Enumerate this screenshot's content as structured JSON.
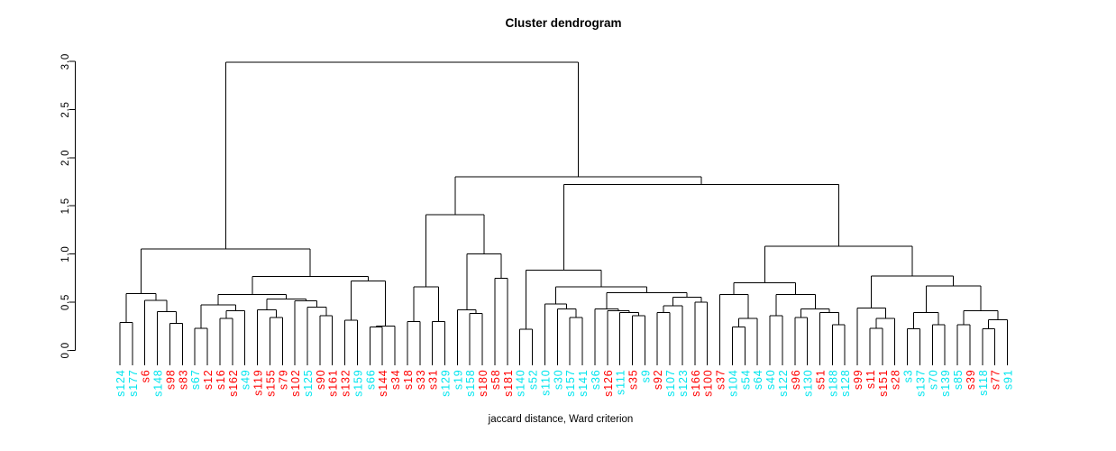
{
  "chart_data": {
    "type": "dendrogram",
    "title": "Cluster dendrogram",
    "xlabel": "jaccard distance, Ward criterion",
    "ylim": [
      0.0,
      3.0
    ],
    "yticks": [
      "0.0",
      "0.5",
      "1.0",
      "1.5",
      "2.0",
      "2.5",
      "3.0"
    ],
    "grid": false,
    "legend": "none",
    "colors": {
      "line": "#000000",
      "red": "#FF0000",
      "cyan": "#00E5EE",
      "axis_text": "#000000"
    },
    "leaves": [
      {
        "label": "s124",
        "color": "cyan"
      },
      {
        "label": "s177",
        "color": "cyan"
      },
      {
        "label": "s6",
        "color": "red"
      },
      {
        "label": "s148",
        "color": "cyan"
      },
      {
        "label": "s98",
        "color": "red"
      },
      {
        "label": "s83",
        "color": "red"
      },
      {
        "label": "s67",
        "color": "cyan"
      },
      {
        "label": "s12",
        "color": "red"
      },
      {
        "label": "s16",
        "color": "red"
      },
      {
        "label": "s162",
        "color": "red"
      },
      {
        "label": "s49",
        "color": "cyan"
      },
      {
        "label": "s119",
        "color": "red"
      },
      {
        "label": "s155",
        "color": "red"
      },
      {
        "label": "s79",
        "color": "red"
      },
      {
        "label": "s102",
        "color": "red"
      },
      {
        "label": "s125",
        "color": "cyan"
      },
      {
        "label": "s90",
        "color": "red"
      },
      {
        "label": "s161",
        "color": "red"
      },
      {
        "label": "s132",
        "color": "red"
      },
      {
        "label": "s159",
        "color": "cyan"
      },
      {
        "label": "s66",
        "color": "cyan"
      },
      {
        "label": "s144",
        "color": "red"
      },
      {
        "label": "s34",
        "color": "red"
      },
      {
        "label": "s18",
        "color": "red"
      },
      {
        "label": "s33",
        "color": "red"
      },
      {
        "label": "s31",
        "color": "red"
      },
      {
        "label": "s129",
        "color": "cyan"
      },
      {
        "label": "s19",
        "color": "cyan"
      },
      {
        "label": "s158",
        "color": "cyan"
      },
      {
        "label": "s180",
        "color": "red"
      },
      {
        "label": "s58",
        "color": "red"
      },
      {
        "label": "s181",
        "color": "red"
      },
      {
        "label": "s140",
        "color": "cyan"
      },
      {
        "label": "s52",
        "color": "cyan"
      },
      {
        "label": "s110",
        "color": "cyan"
      },
      {
        "label": "s30",
        "color": "cyan"
      },
      {
        "label": "s157",
        "color": "cyan"
      },
      {
        "label": "s141",
        "color": "cyan"
      },
      {
        "label": "s36",
        "color": "cyan"
      },
      {
        "label": "s126",
        "color": "red"
      },
      {
        "label": "s111",
        "color": "cyan"
      },
      {
        "label": "s35",
        "color": "red"
      },
      {
        "label": "s9",
        "color": "cyan"
      },
      {
        "label": "s92",
        "color": "red"
      },
      {
        "label": "s107",
        "color": "cyan"
      },
      {
        "label": "s123",
        "color": "cyan"
      },
      {
        "label": "s166",
        "color": "red"
      },
      {
        "label": "s100",
        "color": "red"
      },
      {
        "label": "s37",
        "color": "red"
      },
      {
        "label": "s104",
        "color": "cyan"
      },
      {
        "label": "s54",
        "color": "cyan"
      },
      {
        "label": "s64",
        "color": "cyan"
      },
      {
        "label": "s40",
        "color": "cyan"
      },
      {
        "label": "s122",
        "color": "cyan"
      },
      {
        "label": "s96",
        "color": "red"
      },
      {
        "label": "s130",
        "color": "cyan"
      },
      {
        "label": "s51",
        "color": "red"
      },
      {
        "label": "s188",
        "color": "cyan"
      },
      {
        "label": "s128",
        "color": "cyan"
      },
      {
        "label": "s99",
        "color": "red"
      },
      {
        "label": "s11",
        "color": "red"
      },
      {
        "label": "s151",
        "color": "red"
      },
      {
        "label": "s28",
        "color": "red"
      },
      {
        "label": "s3",
        "color": "cyan"
      },
      {
        "label": "s137",
        "color": "cyan"
      },
      {
        "label": "s70",
        "color": "cyan"
      },
      {
        "label": "s139",
        "color": "cyan"
      },
      {
        "label": "s85",
        "color": "cyan"
      },
      {
        "label": "s39",
        "color": "red"
      },
      {
        "label": "s118",
        "color": "cyan"
      },
      {
        "label": "s77",
        "color": "red"
      },
      {
        "label": "s91",
        "color": "cyan"
      }
    ],
    "tree": {
      "h": 2.99,
      "c": [
        {
          "h": 1.05,
          "c": [
            {
              "h": 0.59,
              "c": [
                {
                  "h": 0.29,
                  "c": [
                    "s124",
                    "s177"
                  ]
                },
                {
                  "h": 0.52,
                  "c": [
                    "s6",
                    {
                      "h": 0.4,
                      "c": [
                        "s148",
                        {
                          "h": 0.28,
                          "c": [
                            "s98",
                            "s83"
                          ]
                        }
                      ]
                    }
                  ]
                }
              ]
            },
            {
              "h": 0.765,
              "c": [
                {
                  "h": 0.58,
                  "c": [
                    {
                      "h": 0.47,
                      "c": [
                        {
                          "h": 0.23,
                          "c": [
                            "s67",
                            "s12"
                          ]
                        },
                        {
                          "h": 0.41,
                          "c": [
                            {
                              "h": 0.33,
                              "c": [
                                "s16",
                                "s162"
                              ]
                            },
                            "s49"
                          ]
                        }
                      ]
                    },
                    {
                      "h": 0.53,
                      "c": [
                        {
                          "h": 0.42,
                          "c": [
                            "s119",
                            {
                              "h": 0.34,
                              "c": [
                                "s155",
                                "s79"
                              ]
                            }
                          ]
                        },
                        {
                          "h": 0.515,
                          "c": [
                            "s102",
                            {
                              "h": 0.45,
                              "c": [
                                "s125",
                                {
                                  "h": 0.36,
                                  "c": [
                                    "s90",
                                    "s161"
                                  ]
                                }
                              ]
                            }
                          ]
                        }
                      ]
                    }
                  ]
                },
                {
                  "h": 0.72,
                  "c": [
                    {
                      "h": 0.31,
                      "c": [
                        "s132",
                        "s159"
                      ]
                    },
                    {
                      "h": 0.25,
                      "c": [
                        {
                          "h": 0.24,
                          "c": [
                            "s66",
                            "s144"
                          ]
                        },
                        "s34"
                      ]
                    }
                  ]
                }
              ]
            }
          ]
        },
        {
          "h": 1.8,
          "c": [
            {
              "h": 1.41,
              "c": [
                {
                  "h": 0.66,
                  "c": [
                    {
                      "h": 0.3,
                      "c": [
                        "s18",
                        "s33"
                      ]
                    },
                    {
                      "h": 0.3,
                      "c": [
                        "s31",
                        "s129"
                      ]
                    }
                  ]
                },
                {
                  "h": 1.0,
                  "c": [
                    {
                      "h": 0.42,
                      "c": [
                        "s19",
                        {
                          "h": 0.38,
                          "c": [
                            "s158",
                            "s180"
                          ]
                        }
                      ]
                    },
                    {
                      "h": 0.75,
                      "c": [
                        "s58",
                        "s181"
                      ]
                    }
                  ]
                }
              ]
            },
            {
              "h": 1.72,
              "c": [
                {
                  "h": 0.83,
                  "c": [
                    {
                      "h": 0.22,
                      "c": [
                        "s140",
                        "s52"
                      ]
                    },
                    {
                      "h": 0.66,
                      "c": [
                        {
                          "h": 0.48,
                          "c": [
                            "s110",
                            {
                              "h": 0.43,
                              "c": [
                                "s30",
                                {
                                  "h": 0.34,
                                  "c": [
                                    "s157",
                                    "s141"
                                  ]
                                }
                              ]
                            }
                          ]
                        },
                        {
                          "h": 0.6,
                          "c": [
                            {
                              "h": 0.43,
                              "c": [
                                "s36",
                                {
                                  "h": 0.41,
                                  "c": [
                                    "s126",
                                    {
                                      "h": 0.39,
                                      "c": [
                                        "s111",
                                        {
                                          "h": 0.36,
                                          "c": [
                                            "s35",
                                            "s9"
                                          ]
                                        }
                                      ]
                                    }
                                  ]
                                }
                              ]
                            },
                            {
                              "h": 0.55,
                              "c": [
                                {
                                  "h": 0.46,
                                  "c": [
                                    {
                                      "h": 0.39,
                                      "c": [
                                        "s92",
                                        "s107"
                                      ]
                                    },
                                    "s123"
                                  ]
                                },
                                {
                                  "h": 0.5,
                                  "c": [
                                    "s166",
                                    "s100"
                                  ]
                                }
                              ]
                            }
                          ]
                        }
                      ]
                    }
                  ]
                },
                {
                  "h": 1.08,
                  "c": [
                    {
                      "h": 0.7,
                      "c": [
                        {
                          "h": 0.58,
                          "c": [
                            "s37",
                            {
                              "h": 0.33,
                              "c": [
                                {
                                  "h": 0.24,
                                  "c": [
                                    "s104",
                                    "s54"
                                  ]
                                },
                                "s64"
                              ]
                            }
                          ]
                        },
                        {
                          "h": 0.58,
                          "c": [
                            {
                              "h": 0.36,
                              "c": [
                                "s40",
                                "s122"
                              ]
                            },
                            {
                              "h": 0.43,
                              "c": [
                                {
                                  "h": 0.34,
                                  "c": [
                                    "s96",
                                    "s130"
                                  ]
                                },
                                {
                                  "h": 0.39,
                                  "c": [
                                    "s51",
                                    {
                                      "h": 0.265,
                                      "c": [
                                        "s188",
                                        "s128"
                                      ]
                                    }
                                  ]
                                }
                              ]
                            }
                          ]
                        }
                      ]
                    },
                    {
                      "h": 0.77,
                      "c": [
                        {
                          "h": 0.44,
                          "c": [
                            "s99",
                            {
                              "h": 0.33,
                              "c": [
                                {
                                  "h": 0.23,
                                  "c": [
                                    "s11",
                                    "s151"
                                  ]
                                },
                                "s28"
                              ]
                            }
                          ]
                        },
                        {
                          "h": 0.67,
                          "c": [
                            {
                              "h": 0.39,
                              "c": [
                                {
                                  "h": 0.225,
                                  "c": [
                                    "s3",
                                    "s137"
                                  ]
                                },
                                {
                                  "h": 0.265,
                                  "c": [
                                    "s70",
                                    "s139"
                                  ]
                                }
                              ]
                            },
                            {
                              "h": 0.41,
                              "c": [
                                {
                                  "h": 0.265,
                                  "c": [
                                    "s85",
                                    "s39"
                                  ]
                                },
                                {
                                  "h": 0.315,
                                  "c": [
                                    {
                                      "h": 0.225,
                                      "c": [
                                        "s118",
                                        "s77"
                                      ]
                                    },
                                    "s91"
                                  ]
                                }
                              ]
                            }
                          ]
                        }
                      ]
                    }
                  ]
                }
              ]
            }
          ]
        }
      ]
    }
  }
}
